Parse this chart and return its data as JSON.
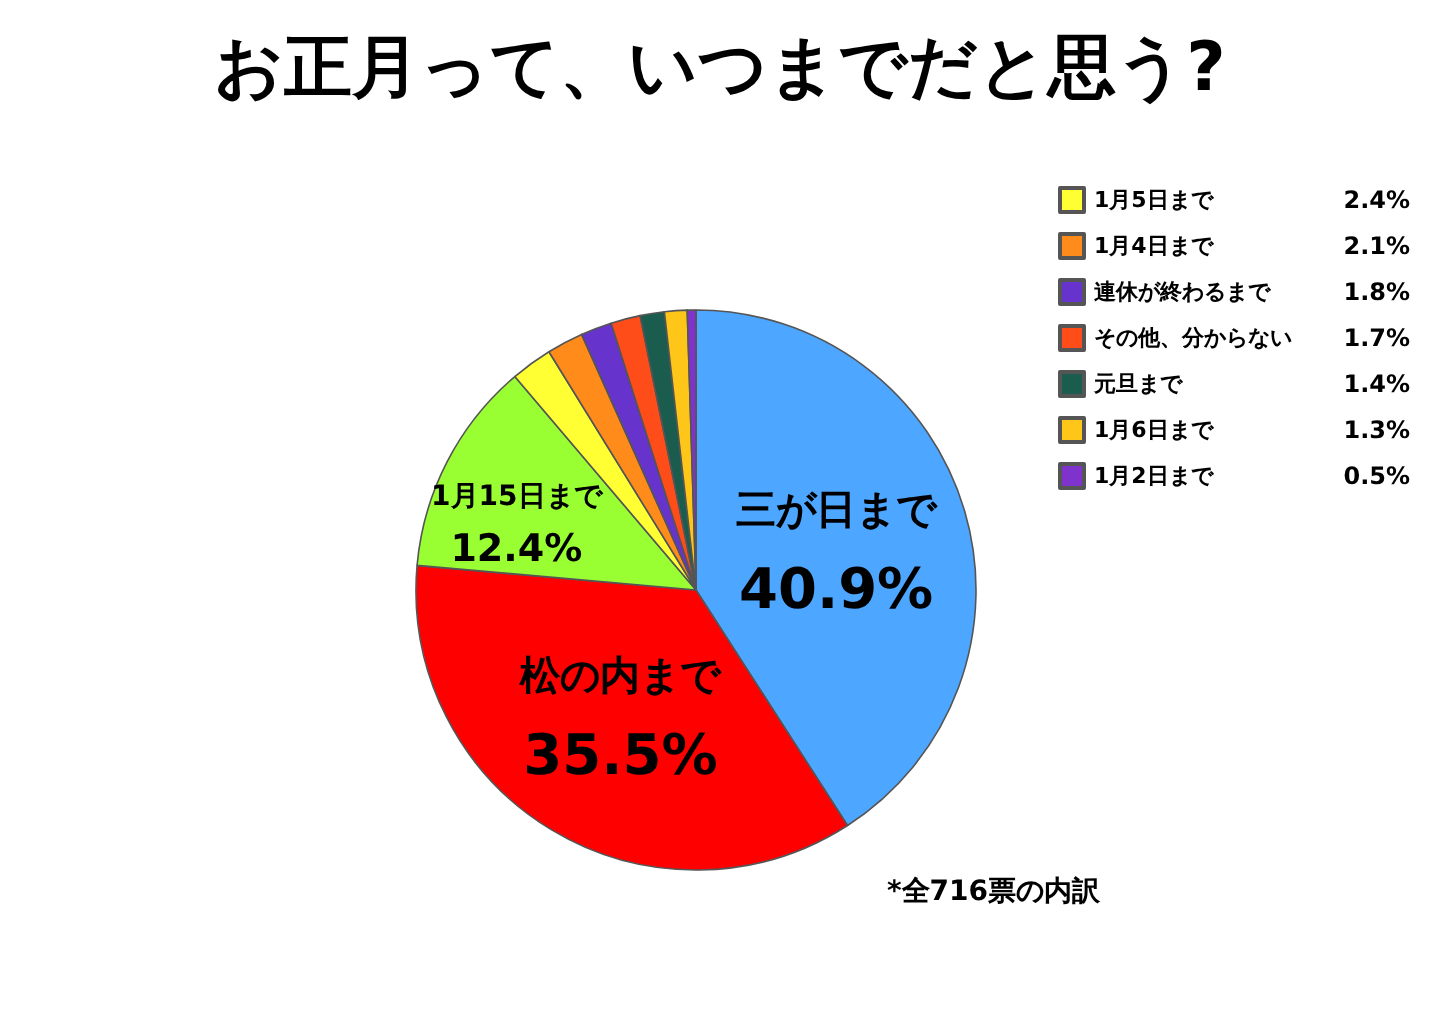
{
  "chart_data": {
    "type": "pie",
    "title": "お正月って、いつまでだと思う?",
    "categories": [
      "三が日まで",
      "松の内まで",
      "1月15日まで",
      "1月5日まで",
      "1月4日まで",
      "連休が終わるまで",
      "その他、分からない",
      "元旦まで",
      "1月6日まで",
      "1月2日まで"
    ],
    "values": [
      40.9,
      35.5,
      12.4,
      2.4,
      2.1,
      1.8,
      1.7,
      1.4,
      1.3,
      0.5
    ],
    "value_labels": [
      "40.9%",
      "35.5%",
      "12.4%",
      "2.4%",
      "2.1%",
      "1.8%",
      "1.7%",
      "1.4%",
      "1.3%",
      "0.5%"
    ],
    "colors": [
      "#4da6ff",
      "#ff0000",
      "#99ff33",
      "#ffff33",
      "#ff8c1a",
      "#6633cc",
      "#ff4d1a",
      "#1a5c4d",
      "#ffc61a",
      "#8033cc"
    ],
    "legend": "top right",
    "annotations": [
      "*全716票の内訳"
    ]
  }
}
